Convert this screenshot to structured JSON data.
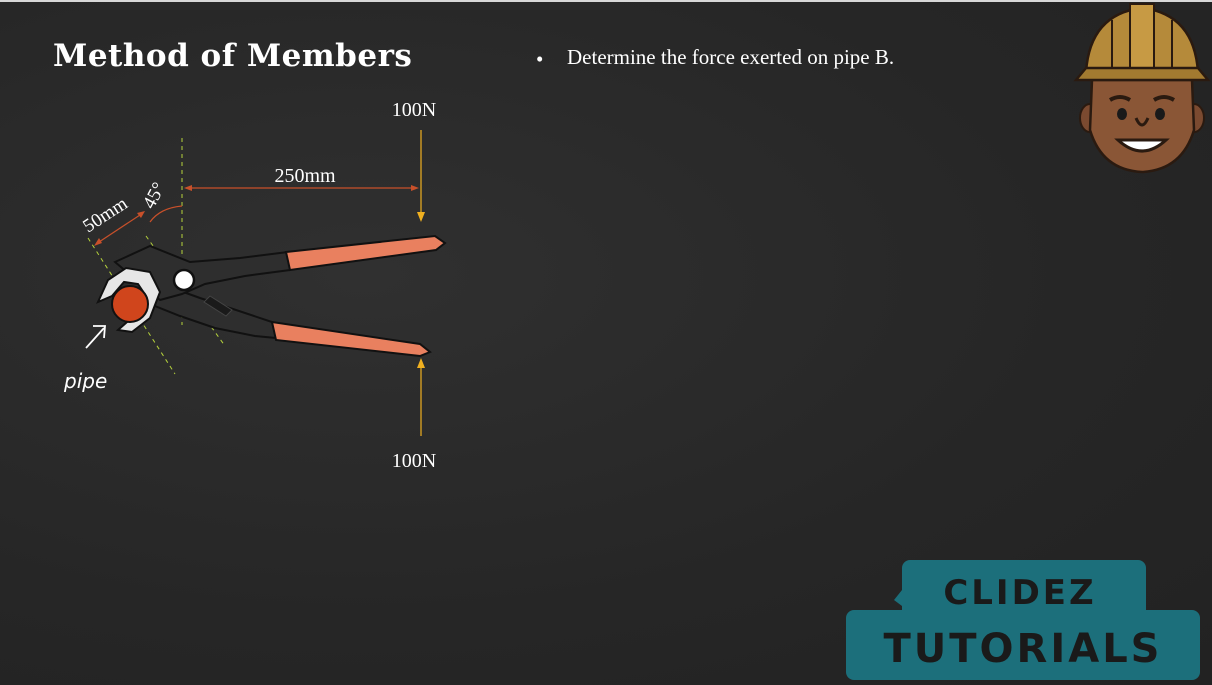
{
  "slide": {
    "title": "Method of Members",
    "bullet": "Determine the force exerted on pipe B."
  },
  "diagram": {
    "force_top_label": "100N",
    "force_bottom_label": "100N",
    "dim_horizontal_label": "250mm",
    "dim_jaw_label": "50mm",
    "angle_label": "45°",
    "pipe_label": "pipe"
  },
  "logo": {
    "line1": "CLIDEZ",
    "line2": "TUTORIALS"
  },
  "colors": {
    "background": "#2a2a2a",
    "handle_grip": "#e9805f",
    "dimension_line": "#c8502a",
    "force_arrow": "#f0b020",
    "guide_dash": "#b5d23c",
    "logo_box": "#1c6f7b",
    "logo_text": "#1a1a1a",
    "helmet": "#b58a3a"
  }
}
